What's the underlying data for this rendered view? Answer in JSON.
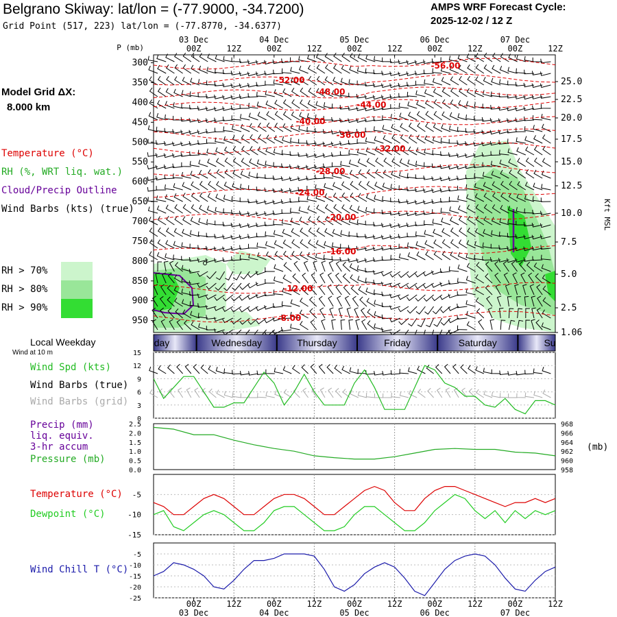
{
  "header": {
    "title": "Belgrano Skiway:  lat/lon = (-77.9000, -34.7200)",
    "subtitle": "Grid Point (517, 223) lat/lon = (-77.8770, -34.6377)",
    "cycle_label": "AMPS WRF Forecast Cycle:",
    "cycle_value": "2025-12-02 / 12  Z",
    "grid_dx_label": "Model Grid ΔX:",
    "grid_dx_value": "8.000 km"
  },
  "legend": {
    "temperature": "Temperature (°C)",
    "rh": "RH (%, WRT liq. wat.)",
    "cloud": "Cloud/Precip Outline",
    "wind_barbs": "Wind Barbs (kts) (true)",
    "rh70": "RH > 70%",
    "rh80": "RH > 80%",
    "rh90": "RH > 90%",
    "weekday_title": "Local Weekday",
    "wind_10m": "Wind at 10 m",
    "wind_spd": "Wind Spd (kts)",
    "barbs_true": "Wind Barbs (true)",
    "barbs_grid": "Wind Barbs (grid)",
    "precip_1": "Precip (mm)",
    "precip_2": "liq. equiv.",
    "precip_3": "3-hr accum",
    "pressure": "Pressure (mb)",
    "temp2": "Temperature (°C)",
    "dewpoint": "Dewpoint (°C)",
    "windchill": "Wind Chill T (°C)"
  },
  "colors": {
    "temperature": "#dd0000",
    "rh70": "#ccf5cc",
    "rh80": "#99e699",
    "rh90": "#33dd33",
    "cloud": "#660099",
    "wind_spd": "#22bb22",
    "pressure": "#22aa22",
    "dewpoint": "#22cc22",
    "windchill": "#1a1aaa",
    "barbs_grid": "#aaaaaa",
    "precip_legend": "#660099"
  },
  "chart_data": [
    {
      "type": "cross-section",
      "name": "time-height",
      "ylabel_left": "P (mb)",
      "ylabel_right": "Kft MSL",
      "pressure_ticks": [
        "300",
        "350",
        "400",
        "450",
        "500",
        "550",
        "600",
        "650",
        "700",
        "750",
        "800",
        "850",
        "900",
        "950"
      ],
      "height_ticks": [
        "25.0",
        "22.5",
        "20.0",
        "17.5",
        "15.0",
        "12.5",
        "10.0",
        "7.5",
        "5.0",
        "2.5",
        "1.06"
      ],
      "time_ticks": [
        "00Z",
        "12Z",
        "00Z",
        "12Z",
        "00Z",
        "12Z",
        "00Z",
        "12Z",
        "00Z",
        "12Z"
      ],
      "date_labels": [
        "03 Dec",
        "04 Dec",
        "05 Dec",
        "06 Dec",
        "07 Dec"
      ],
      "temperature_contour_labels": [
        "-56.00",
        "-52.00",
        "-48.00",
        "-44.00",
        "-40.00",
        "-36.00",
        "-32.00",
        "-28.00",
        "-24.00",
        "-20.00",
        "-16.00",
        "-12.00",
        "-8.00"
      ]
    },
    {
      "type": "band",
      "name": "local-weekday",
      "labels": [
        "day",
        "Wednesday",
        "Thursday",
        "Friday",
        "Saturday",
        "Su"
      ]
    },
    {
      "type": "line",
      "name": "wind-speed",
      "ylim": [
        0,
        15
      ],
      "ticks": [
        "15",
        "12",
        "9",
        "6",
        "3",
        "0"
      ],
      "x_hours": [
        0,
        3,
        6,
        9,
        12,
        15,
        18,
        21,
        24,
        27,
        30,
        33,
        36,
        39,
        42,
        45,
        48,
        51,
        54,
        57,
        60,
        63,
        66,
        69,
        72,
        75,
        78,
        81,
        84,
        87,
        90,
        93,
        96,
        99,
        102,
        105,
        108,
        111,
        114,
        117,
        120
      ],
      "values": [
        9,
        4.5,
        7,
        9.5,
        9.5,
        6,
        2.5,
        2.5,
        3.5,
        3.5,
        7,
        10.5,
        8,
        3,
        6,
        10,
        6,
        3,
        3,
        3,
        8,
        11,
        7,
        2,
        2,
        2,
        7,
        12,
        11,
        8,
        7,
        5,
        5,
        3,
        2.5,
        4.5,
        2,
        1,
        4,
        4,
        3
      ]
    },
    {
      "type": "line",
      "name": "pressure",
      "ylim_left": [
        0,
        2.5
      ],
      "ticks_left": [
        "2.5",
        "2.0",
        "1.5",
        "1.0",
        "0.5",
        "0.0"
      ],
      "ylim": [
        958,
        968
      ],
      "ticks_right": [
        "968",
        "966",
        "964",
        "962",
        "960",
        "958"
      ],
      "ylabel_right": "(mb)",
      "x_hours": [
        0,
        6,
        12,
        18,
        24,
        30,
        36,
        42,
        48,
        54,
        60,
        66,
        72,
        78,
        84,
        90,
        96,
        102,
        108,
        114,
        120
      ],
      "values": [
        967.2,
        966.8,
        965.6,
        965.6,
        964.4,
        963.4,
        962.6,
        962.0,
        961.0,
        960.6,
        960.3,
        960.3,
        960.8,
        961.6,
        962.4,
        962.6,
        962.4,
        962.4,
        961.8,
        961.6,
        961.0
      ]
    },
    {
      "type": "line",
      "name": "temperature-dewpoint",
      "ylim": [
        -15,
        0
      ],
      "ticks": [
        "-5",
        "-10",
        "-15"
      ],
      "x_hours": [
        0,
        3,
        6,
        9,
        12,
        15,
        18,
        21,
        24,
        27,
        30,
        33,
        36,
        39,
        42,
        45,
        48,
        51,
        54,
        57,
        60,
        63,
        66,
        69,
        72,
        75,
        78,
        81,
        84,
        87,
        90,
        93,
        96,
        99,
        102,
        105,
        108,
        111,
        114,
        117,
        120
      ],
      "series": [
        {
          "name": "Temperature",
          "values": [
            -7,
            -8,
            -10,
            -10,
            -8,
            -6,
            -5,
            -6,
            -8,
            -10,
            -10,
            -8,
            -6,
            -5,
            -5,
            -6,
            -8,
            -10,
            -10,
            -8,
            -6,
            -4,
            -3,
            -4,
            -7,
            -9,
            -9,
            -6,
            -4,
            -3,
            -3,
            -4,
            -5,
            -6,
            -7,
            -8,
            -7,
            -7,
            -6,
            -7,
            -6
          ]
        },
        {
          "name": "Dewpoint",
          "values": [
            -10,
            -9,
            -13,
            -14,
            -12,
            -10,
            -9,
            -10,
            -12,
            -14,
            -14,
            -12,
            -9,
            -8,
            -8,
            -10,
            -12,
            -14,
            -14,
            -13,
            -10,
            -8,
            -8,
            -10,
            -12,
            -14,
            -14,
            -12,
            -9,
            -7,
            -5,
            -6,
            -9,
            -11,
            -9,
            -12,
            -9,
            -11,
            -9,
            -10,
            -9
          ]
        }
      ]
    },
    {
      "type": "line",
      "name": "wind-chill",
      "ylim": [
        -25,
        0
      ],
      "ticks": [
        "-5",
        "-10",
        "-15",
        "-20",
        "-25"
      ],
      "x_hours": [
        0,
        3,
        6,
        9,
        12,
        15,
        18,
        21,
        24,
        27,
        30,
        33,
        36,
        39,
        42,
        45,
        48,
        51,
        54,
        57,
        60,
        63,
        66,
        69,
        72,
        75,
        78,
        81,
        84,
        87,
        90,
        93,
        96,
        99,
        102,
        105,
        108,
        111,
        114,
        117,
        120
      ],
      "values": [
        -15,
        -13,
        -9,
        -10,
        -12,
        -15,
        -20,
        -21,
        -17,
        -12,
        -8,
        -8,
        -7,
        -5,
        -5,
        -5,
        -6,
        -12,
        -20,
        -22,
        -19,
        -14,
        -11,
        -9,
        -11,
        -16,
        -22,
        -24,
        -18,
        -12,
        -8,
        -6,
        -5,
        -6,
        -10,
        -16,
        -21,
        -22,
        -17,
        -13,
        -11
      ]
    }
  ]
}
